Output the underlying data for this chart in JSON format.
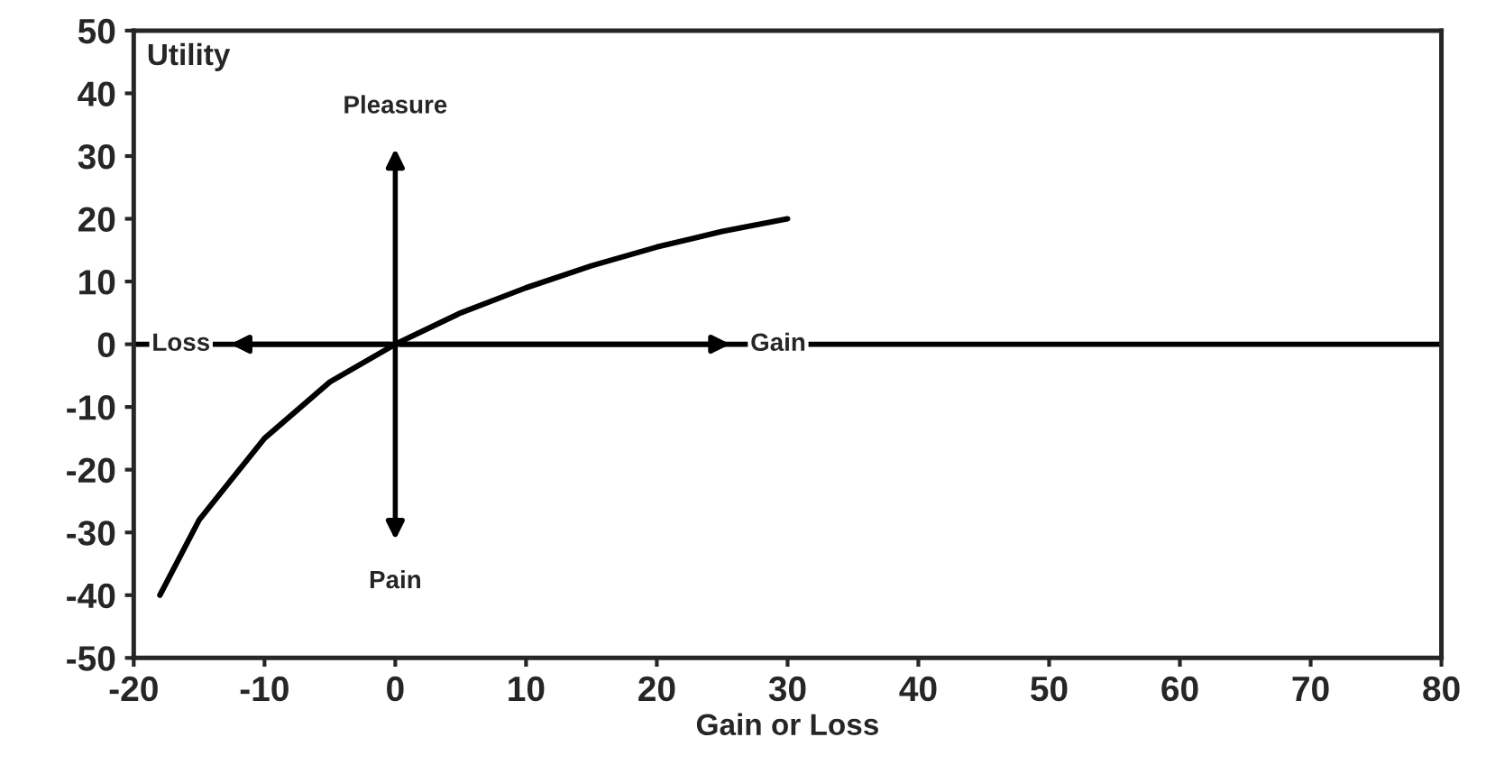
{
  "chart_data": {
    "type": "line",
    "xlabel": "Gain or Loss",
    "ylabel": "Utility",
    "x": [
      -18,
      -15,
      -10,
      -5,
      0,
      5,
      10,
      15,
      20,
      25,
      30
    ],
    "series": [
      {
        "color": "#000000",
        "values": [
          -40,
          -28,
          -15,
          -6,
          0,
          5,
          9,
          12.5,
          15.5,
          18,
          20
        ]
      }
    ],
    "xlim": [
      -20,
      80
    ],
    "xticks": [
      -20,
      -10,
      0,
      10,
      20,
      30,
      40,
      50,
      60,
      70,
      80
    ],
    "ylim": [
      -50,
      50
    ],
    "yticks": [
      -50,
      -40,
      -30,
      -20,
      -10,
      0,
      10,
      20,
      30,
      40,
      50
    ],
    "ref_lines": [
      {
        "axis": "y",
        "value": 0,
        "color": "#000000"
      }
    ],
    "annotations": [
      "Pleasure",
      "Pain",
      {
        "text": "Loss",
        "x": -13,
        "y": 0
      },
      {
        "text": "Gain",
        "x": 26,
        "y": 0
      }
    ],
    "grid": false,
    "legend": false,
    "marker": "none",
    "line_style": "solid"
  }
}
